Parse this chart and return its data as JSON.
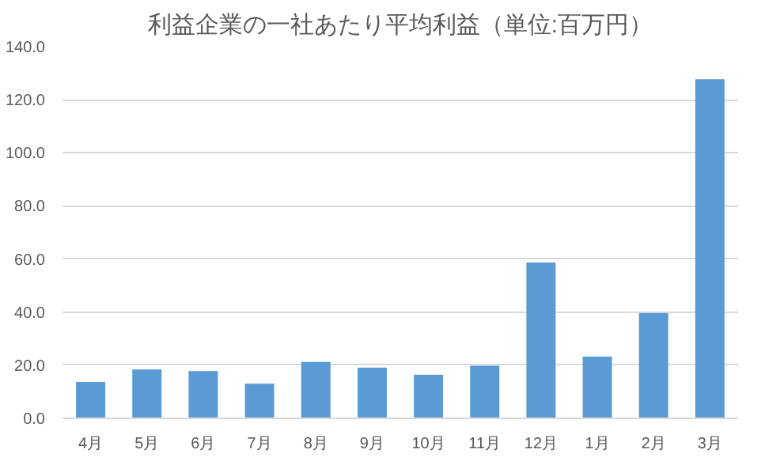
{
  "chart_data": {
    "type": "bar",
    "title": "利益企業の一社あたり平均利益（単位:百万円）",
    "categories": [
      "4月",
      "5月",
      "6月",
      "7月",
      "8月",
      "9月",
      "10月",
      "11月",
      "12月",
      "1月",
      "2月",
      "3月"
    ],
    "values": [
      13.7,
      18.4,
      17.8,
      13.0,
      21.2,
      19.1,
      16.4,
      19.8,
      58.7,
      23.2,
      39.6,
      127.7
    ],
    "color": "#5b9bd5",
    "ylim": [
      0,
      140
    ],
    "yticks": [
      {
        "value": 0,
        "label": "0.0"
      },
      {
        "value": 20,
        "label": "20.0"
      },
      {
        "value": 40,
        "label": "40.0"
      },
      {
        "value": 60,
        "label": "60.0"
      },
      {
        "value": 80,
        "label": "80.0"
      },
      {
        "value": 100,
        "label": "100.0"
      },
      {
        "value": 120,
        "label": "120.0"
      },
      {
        "value": 140,
        "label": "140.0"
      }
    ],
    "grid": "y"
  }
}
